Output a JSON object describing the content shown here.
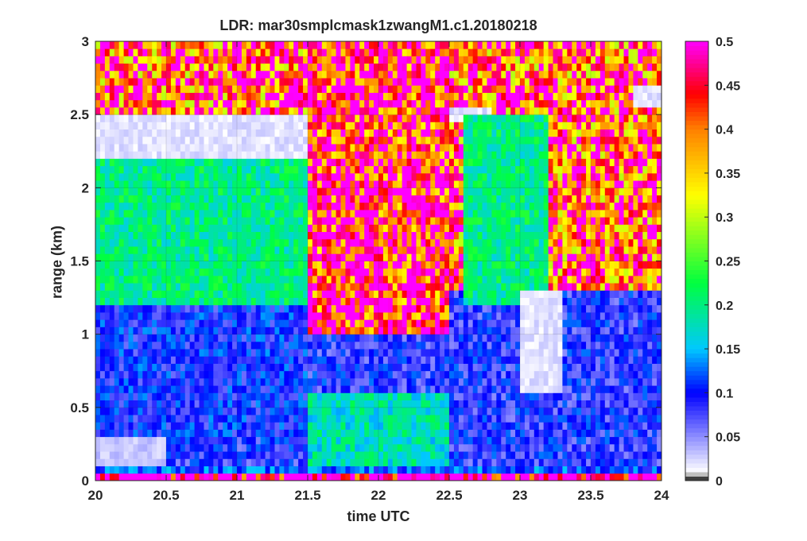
{
  "chart_data": {
    "type": "heatmap",
    "title": "LDR: mar30smplcmask1zwangM1.c1.20180218",
    "xlabel": "time UTC",
    "ylabel": "range (km)",
    "xlim": [
      20,
      24
    ],
    "ylim": [
      0,
      3
    ],
    "x_ticks": [
      20,
      20.5,
      21,
      21.5,
      22,
      22.5,
      23,
      23.5,
      24
    ],
    "x_tick_labels": [
      "20",
      "20.5",
      "21",
      "21.5",
      "22",
      "22.5",
      "23",
      "23.5",
      "24"
    ],
    "y_ticks": [
      0,
      0.5,
      1,
      1.5,
      2,
      2.5,
      3
    ],
    "y_tick_labels": [
      "0",
      "0.5",
      "1",
      "1.5",
      "2",
      "2.5",
      "3"
    ],
    "colorbar": {
      "range": [
        0,
        0.5
      ],
      "ticks": [
        0,
        0.05,
        0.1,
        0.15,
        0.2,
        0.25,
        0.3,
        0.35,
        0.4,
        0.45,
        0.5
      ],
      "tick_labels": [
        "0",
        "0.05",
        "0.1",
        "0.15",
        "0.2",
        "0.25",
        "0.3",
        "0.35",
        "0.4",
        "0.45",
        "0.5"
      ],
      "colormap": [
        "#000000",
        "#ffffff",
        "#0000ff",
        "#00c8ff",
        "#00ff40",
        "#ffff00",
        "#ff8000",
        "#ff0000",
        "#ff00ff"
      ]
    },
    "grid": true,
    "regions": [
      {
        "x": [
          20.0,
          21.5
        ],
        "y": [
          2.2,
          2.5
        ],
        "ldr": 0.02
      },
      {
        "x": [
          20.0,
          21.5
        ],
        "y": [
          1.2,
          2.2
        ],
        "ldr": 0.2
      },
      {
        "x": [
          20.0,
          21.5
        ],
        "y": [
          0.3,
          1.2
        ],
        "ldr": 0.1
      },
      {
        "x": [
          20.0,
          20.5
        ],
        "y": [
          0.1,
          0.3
        ],
        "ldr": 0.03
      },
      {
        "x": [
          21.5,
          22.5
        ],
        "y": [
          1.0,
          3.0
        ],
        "ldr": 0.45
      },
      {
        "x": [
          21.5,
          22.5
        ],
        "y": [
          0.1,
          0.6
        ],
        "ldr": 0.18
      },
      {
        "x": [
          22.5,
          22.8
        ],
        "y": [
          2.45,
          2.55
        ],
        "ldr": 0.02
      },
      {
        "x": [
          22.6,
          23.2
        ],
        "y": [
          1.2,
          2.5
        ],
        "ldr": 0.2
      },
      {
        "x": [
          23.0,
          23.3
        ],
        "y": [
          0.6,
          1.3
        ],
        "ldr": 0.02
      },
      {
        "x": [
          23.8,
          24.0
        ],
        "y": [
          2.55,
          2.7
        ],
        "ldr": 0.02
      },
      {
        "x": [
          20.0,
          24.0
        ],
        "y": [
          0.0,
          0.05
        ],
        "ldr": 0.5
      },
      {
        "x": [
          20.0,
          24.0
        ],
        "y": [
          0.05,
          0.1
        ],
        "ldr": 0.12
      }
    ]
  }
}
